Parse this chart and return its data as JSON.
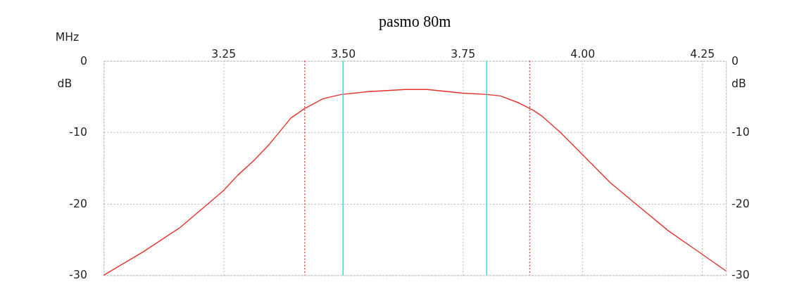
{
  "chart_data": {
    "type": "line",
    "title": "pasmo 80m",
    "xlabel": "MHz",
    "ylabel": "dB",
    "y2label": "dB",
    "x": [
      3.0,
      3.083,
      3.16,
      3.218,
      3.251,
      3.28,
      3.313,
      3.347,
      3.391,
      3.419,
      3.458,
      3.496,
      3.554,
      3.63,
      3.676,
      3.747,
      3.801,
      3.829,
      3.868,
      3.897,
      3.915,
      3.954,
      4.003,
      4.059,
      4.113,
      4.18,
      4.238,
      4.3
    ],
    "series": [
      {
        "color": "#e8302a",
        "values": [
          -30.0,
          -26.7,
          -23.3,
          -20.0,
          -18.1,
          -16.0,
          -14.0,
          -11.6,
          -8.0,
          -6.7,
          -5.3,
          -4.7,
          -4.3,
          -4.0,
          -4.0,
          -4.5,
          -4.7,
          -4.9,
          -5.9,
          -6.9,
          -7.7,
          -10.0,
          -13.3,
          -17.1,
          -20.1,
          -23.8,
          -26.5,
          -29.4
        ]
      }
    ],
    "xlim": [
      3.0,
      4.3
    ],
    "xticks": [
      {
        "value": 3.0,
        "label": null
      },
      {
        "value": 3.25,
        "label": "3.25"
      },
      {
        "value": 3.5,
        "label": "3.50"
      },
      {
        "value": 3.75,
        "label": "3.75"
      },
      {
        "value": 4.0,
        "label": "4.00"
      },
      {
        "value": 4.25,
        "label": "4.25"
      },
      {
        "value": 4.3,
        "label": null
      }
    ],
    "ylim": [
      -30,
      0
    ],
    "yticks": [
      -30,
      -20,
      -10,
      0
    ],
    "y2lim": [
      -30,
      0
    ],
    "y2ticks": [
      -30,
      -20,
      -10,
      0
    ],
    "ref_lines": [
      {
        "axis": "x",
        "value": 3.42,
        "color": "#e8302a",
        "line_style": "dotted"
      },
      {
        "axis": "x",
        "value": 3.89,
        "color": "#e8302a",
        "line_style": "dotted"
      },
      {
        "axis": "x",
        "value": 3.5,
        "color": "#2fd4e8",
        "line_style": "solid"
      },
      {
        "axis": "x",
        "value": 3.8,
        "color": "#2fd4e8",
        "line_style": "solid"
      }
    ],
    "grid": true,
    "line_style": "solid",
    "marker": "none"
  }
}
